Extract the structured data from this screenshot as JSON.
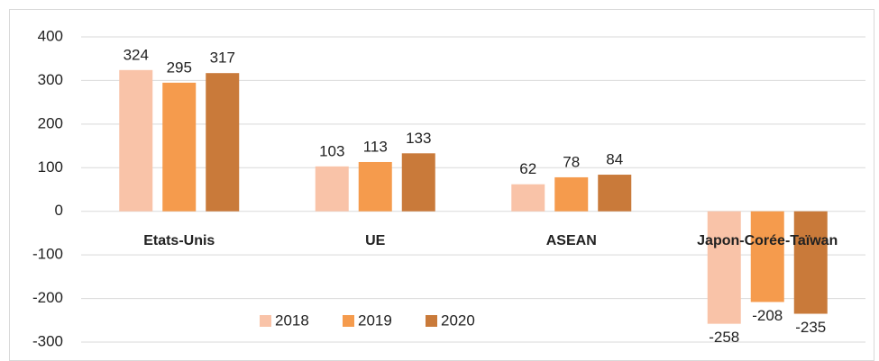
{
  "chart_data": {
    "type": "bar",
    "categories": [
      "Etats-Unis",
      "UE",
      "ASEAN",
      "Japon-Corée-Taïwan"
    ],
    "series": [
      {
        "name": "2018",
        "color": "#f9c3a8",
        "values": [
          324,
          103,
          62,
          -258
        ]
      },
      {
        "name": "2019",
        "color": "#f59b4d",
        "values": [
          295,
          113,
          78,
          -208
        ]
      },
      {
        "name": "2020",
        "color": "#c97a3a",
        "values": [
          317,
          133,
          84,
          -235
        ]
      }
    ],
    "ylim": [
      -300,
      400
    ],
    "yticks": [
      -300,
      -200,
      -100,
      0,
      100,
      200,
      300,
      400
    ],
    "grid": true,
    "legend": "bottom"
  }
}
